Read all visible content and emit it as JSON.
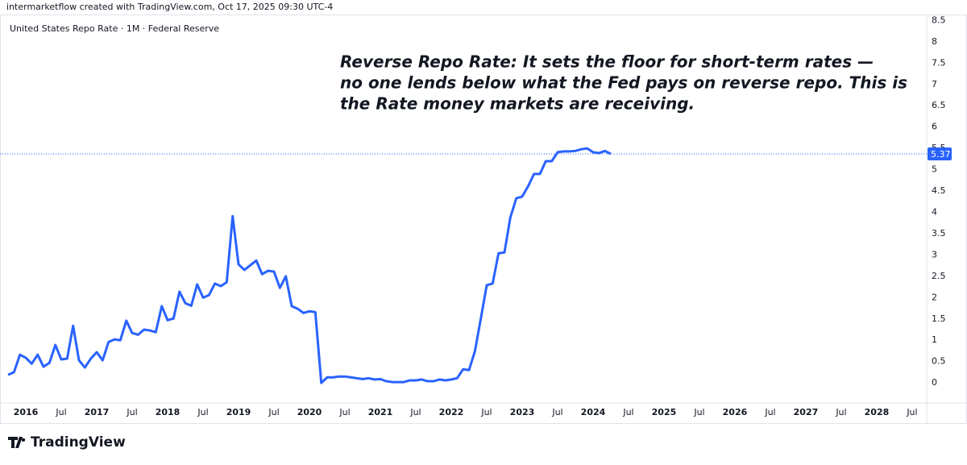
{
  "chart_data": {
    "type": "line",
    "header": "intermarketflow created with TradingView.com, Oct 17, 2025 09:30 UTC-4",
    "title": "United States Repo Rate · 1M · Federal Reserve",
    "annotation": [
      "Reverse Repo Rate: It sets the floor for short-term rates —",
      "no one lends below what the Fed pays on reverse repo. This is",
      "the Rate money markets are receiving."
    ],
    "brand": "TradingView",
    "x": [
      2015.75,
      2015.833,
      2015.917,
      2016.0,
      2016.083,
      2016.167,
      2016.25,
      2016.333,
      2016.417,
      2016.5,
      2016.583,
      2016.667,
      2016.75,
      2016.833,
      2016.917,
      2017.0,
      2017.083,
      2017.167,
      2017.25,
      2017.333,
      2017.417,
      2017.5,
      2017.583,
      2017.667,
      2017.75,
      2017.833,
      2017.917,
      2018.0,
      2018.083,
      2018.167,
      2018.25,
      2018.333,
      2018.417,
      2018.5,
      2018.583,
      2018.667,
      2018.75,
      2018.833,
      2018.917,
      2019.0,
      2019.083,
      2019.167,
      2019.25,
      2019.333,
      2019.417,
      2019.5,
      2019.583,
      2019.667,
      2019.75,
      2019.833,
      2019.917,
      2020.0,
      2020.083,
      2020.167,
      2020.25,
      2020.333,
      2020.417,
      2020.5,
      2020.583,
      2020.667,
      2020.75,
      2020.833,
      2020.917,
      2021.0,
      2021.083,
      2021.167,
      2021.25,
      2021.333,
      2021.417,
      2021.5,
      2021.583,
      2021.667,
      2021.75,
      2021.833,
      2021.917,
      2022.0,
      2022.083,
      2022.167,
      2022.25,
      2022.333,
      2022.417,
      2022.5,
      2022.583,
      2022.667,
      2022.75,
      2022.833,
      2022.917,
      2023.0,
      2023.083,
      2023.167,
      2023.25,
      2023.333,
      2023.417,
      2023.5,
      2023.583,
      2023.667,
      2023.75,
      2023.833,
      2023.917,
      2024.0,
      2024.083,
      2024.167,
      2024.25
    ],
    "series": [
      {
        "name": "United States Repo Rate",
        "color": "#2962ff",
        "values": [
          0.19,
          0.25,
          0.66,
          0.59,
          0.45,
          0.66,
          0.38,
          0.47,
          0.89,
          0.55,
          0.57,
          1.34,
          0.53,
          0.36,
          0.57,
          0.72,
          0.53,
          0.96,
          1.02,
          1.0,
          1.46,
          1.17,
          1.13,
          1.25,
          1.23,
          1.19,
          1.8,
          1.47,
          1.51,
          2.14,
          1.87,
          1.81,
          2.31,
          2.0,
          2.06,
          2.33,
          2.27,
          2.36,
          3.91,
          2.78,
          2.65,
          2.76,
          2.87,
          2.55,
          2.63,
          2.61,
          2.23,
          2.5,
          1.8,
          1.74,
          1.64,
          1.68,
          1.66,
          0.0,
          0.13,
          0.13,
          0.15,
          0.15,
          0.13,
          0.11,
          0.09,
          0.11,
          0.08,
          0.09,
          0.04,
          0.02,
          0.02,
          0.02,
          0.06,
          0.06,
          0.08,
          0.04,
          0.04,
          0.08,
          0.06,
          0.08,
          0.11,
          0.32,
          0.3,
          0.74,
          1.51,
          2.29,
          2.33,
          3.04,
          3.06,
          3.88,
          4.33,
          4.37,
          4.61,
          4.9,
          4.9,
          5.2,
          5.2,
          5.41,
          5.43,
          5.43,
          5.44,
          5.48,
          5.5,
          5.41,
          5.39,
          5.44,
          5.37
        ]
      }
    ],
    "last_value": 5.37,
    "xlim": [
      2015.636,
      2028.705
    ],
    "xticks": [
      {
        "value": 2016,
        "label": "2016"
      },
      {
        "value": 2016.5,
        "label": "Jul"
      },
      {
        "value": 2017,
        "label": "2017"
      },
      {
        "value": 2017.5,
        "label": "Jul"
      },
      {
        "value": 2018,
        "label": "2018"
      },
      {
        "value": 2018.5,
        "label": "Jul"
      },
      {
        "value": 2019,
        "label": "2019"
      },
      {
        "value": 2019.5,
        "label": "Jul"
      },
      {
        "value": 2020,
        "label": "2020"
      },
      {
        "value": 2020.5,
        "label": "Jul"
      },
      {
        "value": 2021,
        "label": "2021"
      },
      {
        "value": 2021.5,
        "label": "Jul"
      },
      {
        "value": 2022,
        "label": "2022"
      },
      {
        "value": 2022.5,
        "label": "Jul"
      },
      {
        "value": 2023,
        "label": "2023"
      },
      {
        "value": 2023.5,
        "label": "Jul"
      },
      {
        "value": 2024,
        "label": "2024"
      },
      {
        "value": 2024.5,
        "label": "Jul"
      },
      {
        "value": 2025,
        "label": "2025"
      },
      {
        "value": 2025.5,
        "label": "Jul"
      },
      {
        "value": 2026,
        "label": "2026"
      },
      {
        "value": 2026.5,
        "label": "Jul"
      },
      {
        "value": 2027,
        "label": "2027"
      },
      {
        "value": 2027.5,
        "label": "Jul"
      },
      {
        "value": 2028,
        "label": "2028"
      },
      {
        "value": 2028.5,
        "label": "Jul"
      }
    ],
    "ylim": [
      -0.47,
      8.64
    ],
    "yticks": [
      0,
      0.5,
      1,
      1.5,
      2,
      2.5,
      3,
      3.5,
      4,
      4.5,
      5,
      5.5,
      6,
      6.5,
      7,
      7.5,
      8,
      8.5
    ],
    "grid": false
  }
}
